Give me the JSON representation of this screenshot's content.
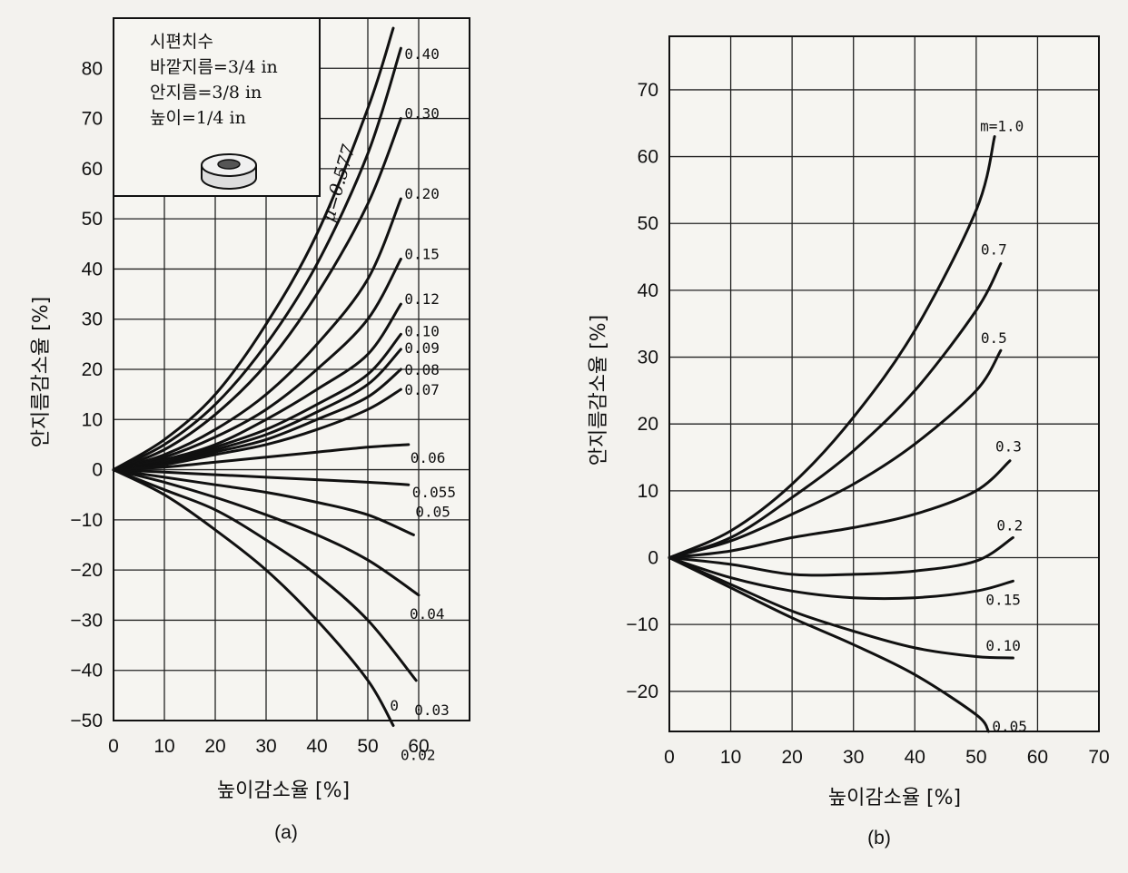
{
  "chart_data": [
    {
      "type": "line",
      "caption": "(a)",
      "xlabel": "높이감소율 [%]",
      "ylabel": "안지름감소율 [%]",
      "xlim": [
        0,
        70
      ],
      "ylim": [
        -50,
        90
      ],
      "xticks": [
        0,
        10,
        20,
        30,
        40,
        50,
        60
      ],
      "yticks": [
        80,
        70,
        60,
        50,
        40,
        30,
        20,
        10,
        0,
        -10,
        -20,
        -30,
        -40,
        -50
      ],
      "grid": true,
      "inset": {
        "lines": [
          "시편치수",
          "바깥지름=3/4 in",
          "안지름=3/8 in",
          "높이=1/4 in"
        ],
        "icon": "ring-specimen-icon"
      },
      "series_label_prefix": "μ=",
      "series": [
        {
          "name": "0.577",
          "label": "",
          "x": [
            0,
            10,
            20,
            30,
            40,
            50,
            55
          ],
          "y": [
            0,
            6,
            15,
            29,
            47,
            72,
            88
          ]
        },
        {
          "name": "0.40",
          "label": "0.40",
          "x": [
            0,
            10,
            20,
            30,
            40,
            50,
            56.5
          ],
          "y": [
            0,
            5,
            13,
            25,
            41,
            63,
            84
          ]
        },
        {
          "name": "0.30",
          "label": "0.30",
          "x": [
            0,
            10,
            20,
            30,
            40,
            50,
            56.5
          ],
          "y": [
            0,
            4,
            11,
            21,
            35,
            53,
            70
          ]
        },
        {
          "name": "0.20",
          "label": "0.20",
          "x": [
            0,
            10,
            20,
            30,
            40,
            50,
            56.5
          ],
          "y": [
            0,
            3,
            8,
            15,
            25,
            38,
            54
          ]
        },
        {
          "name": "0.15",
          "label": "0.15",
          "x": [
            0,
            10,
            20,
            30,
            40,
            50,
            56.5
          ],
          "y": [
            0,
            2.5,
            6.5,
            12,
            20,
            30,
            42
          ]
        },
        {
          "name": "0.12",
          "label": "0.12",
          "x": [
            0,
            10,
            20,
            30,
            40,
            50,
            56.5
          ],
          "y": [
            0,
            2,
            5,
            10,
            16,
            23,
            33
          ]
        },
        {
          "name": "0.10",
          "label": "0.10",
          "x": [
            0,
            10,
            20,
            30,
            40,
            50,
            56.5
          ],
          "y": [
            0,
            1.5,
            4.5,
            8,
            13,
            19,
            27
          ]
        },
        {
          "name": "0.09",
          "label": "0.09",
          "x": [
            0,
            10,
            20,
            30,
            40,
            50,
            56.5
          ],
          "y": [
            0,
            1.4,
            4,
            7,
            11.5,
            17,
            24
          ]
        },
        {
          "name": "0.08",
          "label": "0.08",
          "x": [
            0,
            10,
            20,
            30,
            40,
            50,
            56.5
          ],
          "y": [
            0,
            1.2,
            3.5,
            6,
            10,
            14.5,
            20
          ]
        },
        {
          "name": "0.07",
          "label": "0.07",
          "x": [
            0,
            10,
            20,
            30,
            40,
            50,
            56.5
          ],
          "y": [
            0,
            1,
            3,
            5,
            8,
            12,
            16
          ]
        },
        {
          "name": "0.06",
          "label": "0.06",
          "x": [
            0,
            10,
            20,
            30,
            40,
            50,
            58
          ],
          "y": [
            0,
            0.5,
            1.5,
            2.5,
            3.5,
            4.5,
            5
          ]
        },
        {
          "name": "0.055",
          "label": "0.055",
          "x": [
            0,
            10,
            20,
            30,
            40,
            50,
            58
          ],
          "y": [
            0,
            -0.5,
            -1,
            -1.5,
            -2,
            -2.5,
            -3
          ]
        },
        {
          "name": "0.05",
          "label": "0.05",
          "x": [
            0,
            10,
            20,
            30,
            40,
            50,
            59
          ],
          "y": [
            0,
            -1.5,
            -3,
            -4.5,
            -6.5,
            -9,
            -13
          ]
        },
        {
          "name": "0.04",
          "label": "0.04",
          "x": [
            0,
            10,
            20,
            30,
            40,
            50,
            60
          ],
          "y": [
            0,
            -2.5,
            -5.5,
            -9,
            -13,
            -18,
            -25
          ]
        },
        {
          "name": "0.03",
          "label": "0.03",
          "x": [
            0,
            10,
            20,
            30,
            40,
            50,
            59.5
          ],
          "y": [
            0,
            -4,
            -8,
            -14,
            -21,
            -30,
            -42
          ]
        },
        {
          "name": "0.02",
          "label": "0.02",
          "x": [
            0,
            10,
            20,
            30,
            40,
            50,
            55
          ],
          "y": [
            0,
            -5,
            -12,
            -20,
            -30,
            -42,
            -51
          ]
        }
      ],
      "annotations": [
        {
          "text": "μ=0.577",
          "x": 45,
          "y": 64
        },
        {
          "text": "0",
          "x": 54,
          "y": -48
        }
      ]
    },
    {
      "type": "line",
      "caption": "(b)",
      "xlabel": "높이감소율 [%]",
      "ylabel": "안지름감소율 [%]",
      "xlim": [
        0,
        70
      ],
      "ylim": [
        -26,
        78
      ],
      "xticks": [
        0,
        10,
        20,
        30,
        40,
        50,
        60,
        70
      ],
      "yticks": [
        70,
        60,
        50,
        40,
        30,
        20,
        10,
        0,
        -10,
        -20
      ],
      "grid": true,
      "series": [
        {
          "name": "1.0",
          "label": "m=1.0",
          "x": [
            0,
            10,
            20,
            30,
            40,
            50,
            53
          ],
          "y": [
            0,
            4,
            11,
            21,
            34,
            52,
            63
          ]
        },
        {
          "name": "0.7",
          "label": "0.7",
          "x": [
            0,
            10,
            20,
            30,
            40,
            50,
            54
          ],
          "y": [
            0,
            3,
            9,
            16,
            25,
            37,
            44
          ]
        },
        {
          "name": "0.5",
          "label": "0.5",
          "x": [
            0,
            10,
            20,
            30,
            40,
            50,
            54
          ],
          "y": [
            0,
            2.5,
            6.5,
            11,
            17,
            25,
            31
          ]
        },
        {
          "name": "0.3",
          "label": "0.3",
          "x": [
            0,
            10,
            20,
            30,
            40,
            50,
            55.5
          ],
          "y": [
            0,
            1,
            3,
            4.5,
            6.5,
            10,
            14.5
          ]
        },
        {
          "name": "0.2",
          "label": "0.2",
          "x": [
            0,
            10,
            20,
            30,
            40,
            50,
            56
          ],
          "y": [
            0,
            -1,
            -2.5,
            -2.5,
            -2,
            -0.5,
            3
          ]
        },
        {
          "name": "0.15",
          "label": "0.15",
          "x": [
            0,
            10,
            20,
            30,
            40,
            50,
            56
          ],
          "y": [
            0,
            -3,
            -5,
            -6,
            -6,
            -5,
            -3.5
          ]
        },
        {
          "name": "0.10",
          "label": "0.10",
          "x": [
            0,
            10,
            20,
            30,
            40,
            50,
            56
          ],
          "y": [
            0,
            -4,
            -8,
            -11,
            -13.5,
            -14.8,
            -15
          ]
        },
        {
          "name": "0.05",
          "label": "0.05",
          "x": [
            0,
            10,
            20,
            30,
            40,
            50,
            52
          ],
          "y": [
            0,
            -4.5,
            -9,
            -13,
            -17.5,
            -23.5,
            -26
          ]
        }
      ]
    }
  ]
}
